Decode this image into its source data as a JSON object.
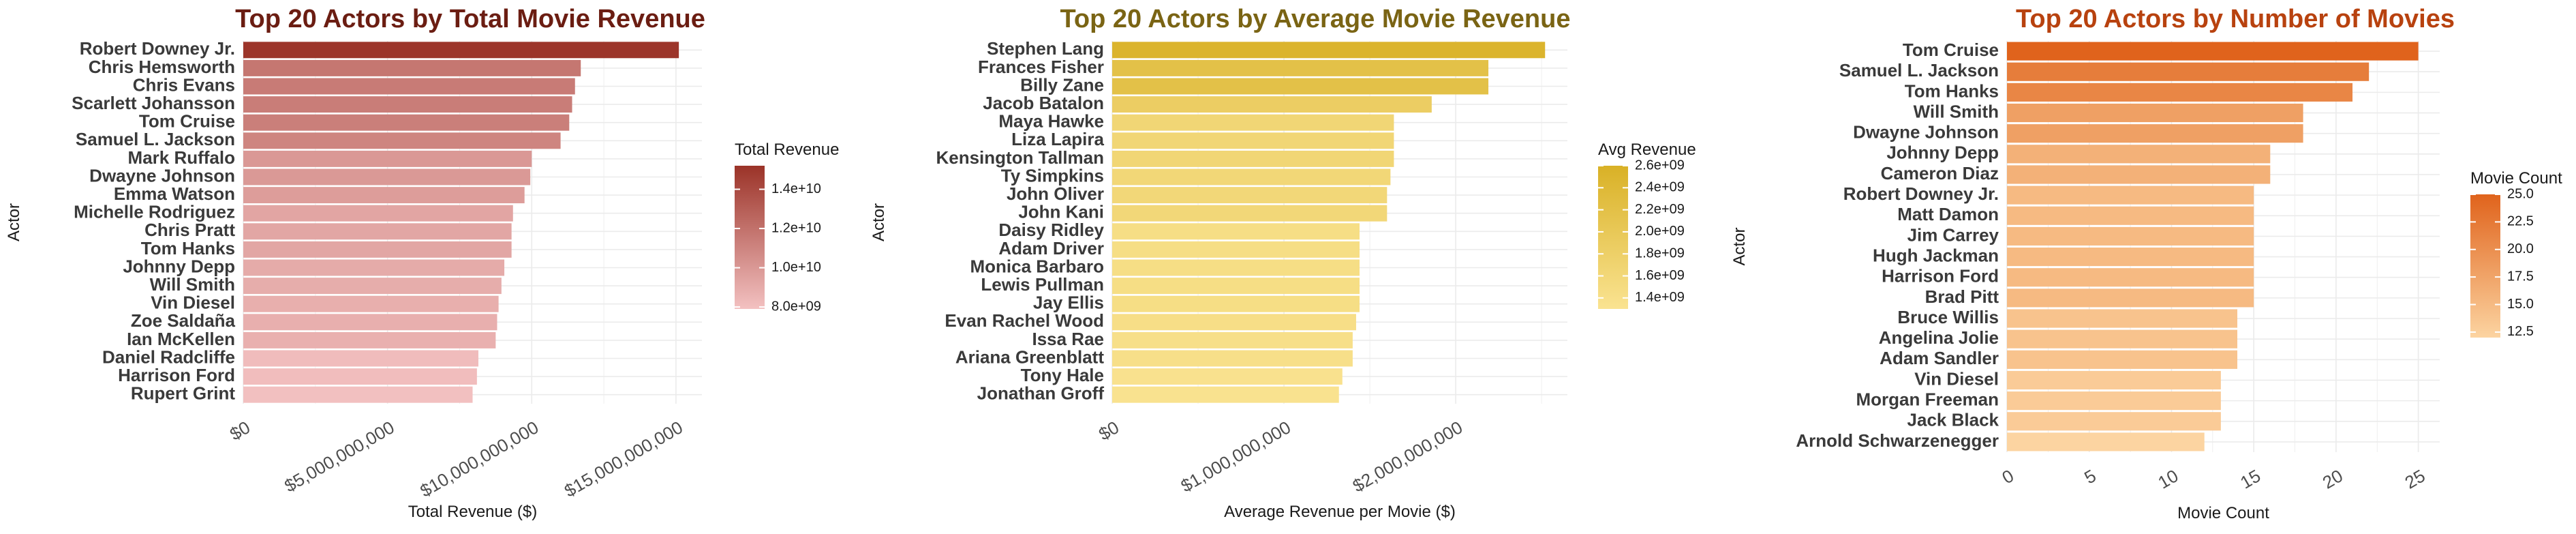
{
  "chart_data": [
    {
      "type": "bar",
      "orientation": "horizontal",
      "title": "Top 20 Actors by Total Movie Revenue",
      "title_color": "#6b1d12",
      "xlabel": "Total Revenue ($)",
      "ylabel": "Actor",
      "xlim": [
        0,
        15900000000
      ],
      "x_ticks": [
        0,
        5000000000,
        10000000000,
        15000000000
      ],
      "x_tick_labels": [
        "$0",
        "$5,000,000,000",
        "$10,000,000,000",
        "$15,000,000,000"
      ],
      "grid": true,
      "categories": [
        "Robert Downey Jr.",
        "Chris Hemsworth",
        "Chris Evans",
        "Scarlett Johansson",
        "Tom Cruise",
        "Samuel L. Jackson",
        "Mark Ruffalo",
        "Dwayne Johnson",
        "Emma Watson",
        "Michelle Rodriguez",
        "Chris Pratt",
        "Tom Hanks",
        "Johnny Depp",
        "Will Smith",
        "Vin Diesel",
        "Zoe Saldaña",
        "Ian McKellen",
        "Daniel Radcliffe",
        "Harrison Ford",
        "Rupert Grint"
      ],
      "values": [
        15100000000,
        11700000000,
        11500000000,
        11400000000,
        11300000000,
        11000000000,
        10000000000,
        9950000000,
        9750000000,
        9350000000,
        9300000000,
        9300000000,
        9050000000,
        8950000000,
        8850000000,
        8800000000,
        8750000000,
        8150000000,
        8100000000,
        7950000000
      ],
      "legend": {
        "title": "Total Revenue",
        "position": "right",
        "min": 7900000000,
        "max": 15200000000,
        "ticks": [
          8000000000,
          10000000000,
          12000000000,
          14000000000
        ],
        "tick_labels": [
          "8.0e+09",
          "1.0e+10",
          "1.2e+10",
          "1.4e+10"
        ],
        "color_low": "#f3c1c1",
        "color_high": "#9b3328"
      }
    },
    {
      "type": "bar",
      "orientation": "horizontal",
      "title": "Top 20 Actors by Average Movie Revenue",
      "title_color": "#7a6414",
      "xlabel": "Average Revenue per Movie ($)",
      "ylabel": "Actor",
      "xlim": [
        0,
        2650000000
      ],
      "x_ticks": [
        0,
        1000000000,
        2000000000
      ],
      "x_tick_labels": [
        "$0",
        "$1,000,000,000",
        "$2,000,000,000"
      ],
      "grid": true,
      "categories": [
        "Stephen Lang",
        "Frances Fisher",
        "Billy Zane",
        "Jacob Batalon",
        "Maya Hawke",
        "Liza Lapira",
        "Kensington Tallman",
        "Ty Simpkins",
        "John Oliver",
        "John Kani",
        "Daisy Ridley",
        "Adam Driver",
        "Monica Barbaro",
        "Lewis Pullman",
        "Jay Ellis",
        "Evan Rachel Wood",
        "Issa Rae",
        "Ariana Greenblatt",
        "Tony Hale",
        "Jonathan Groff"
      ],
      "values": [
        2520000000,
        2190000000,
        2190000000,
        1860000000,
        1640000000,
        1640000000,
        1640000000,
        1620000000,
        1600000000,
        1600000000,
        1440000000,
        1440000000,
        1440000000,
        1440000000,
        1440000000,
        1420000000,
        1400000000,
        1400000000,
        1340000000,
        1320000000
      ],
      "legend": {
        "title": "Avg Revenue",
        "position": "right",
        "min": 1300000000,
        "max": 2600000000,
        "ticks": [
          1400000000,
          1600000000,
          1800000000,
          2000000000,
          2200000000,
          2400000000,
          2600000000
        ],
        "tick_labels": [
          "1.4e+09",
          "1.6e+09",
          "1.8e+09",
          "2.0e+09",
          "2.2e+09",
          "2.4e+09",
          "2.6e+09"
        ],
        "color_low": "#fae391",
        "color_high": "#d9b126"
      }
    },
    {
      "type": "bar",
      "orientation": "horizontal",
      "title": "Top 20 Actors by Number of Movies",
      "title_color": "#b8420f",
      "xlabel": "Movie Count",
      "ylabel": "Actor",
      "xlim": [
        0,
        26.3
      ],
      "x_ticks": [
        0,
        5,
        10,
        15,
        20,
        25
      ],
      "x_tick_labels": [
        "0",
        "5",
        "10",
        "15",
        "20",
        "25"
      ],
      "grid": true,
      "categories": [
        "Tom Cruise",
        "Samuel L. Jackson",
        "Tom Hanks",
        "Will Smith",
        "Dwayne Johnson",
        "Johnny Depp",
        "Cameron Diaz",
        "Robert Downey Jr.",
        "Matt Damon",
        "Jim Carrey",
        "Hugh Jackman",
        "Harrison Ford",
        "Brad Pitt",
        "Bruce Willis",
        "Angelina Jolie",
        "Adam Sandler",
        "Vin Diesel",
        "Morgan Freeman",
        "Jack Black",
        "Arnold Schwarzenegger"
      ],
      "values": [
        25,
        22,
        21,
        18,
        18,
        16,
        16,
        15,
        15,
        15,
        15,
        15,
        15,
        14,
        14,
        14,
        13,
        13,
        13,
        12
      ],
      "legend": {
        "title": "Movie Count",
        "position": "right",
        "min": 12,
        "max": 25,
        "ticks": [
          12.5,
          15,
          17.5,
          20,
          22.5,
          25
        ],
        "tick_labels": [
          "12.5",
          "15.0",
          "17.5",
          "20.0",
          "22.5",
          "25.0"
        ],
        "color_low": "#fcd4a1",
        "color_high": "#e0631c"
      }
    }
  ]
}
